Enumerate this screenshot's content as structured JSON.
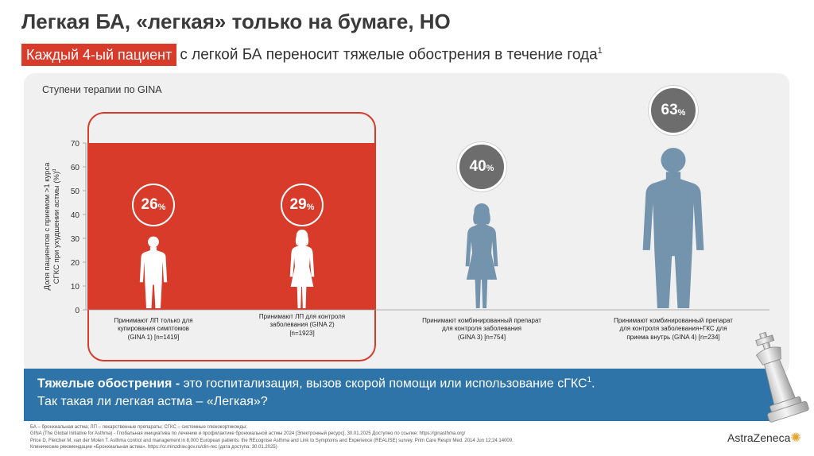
{
  "header": {
    "title": "Легкая БА, «легкая» только на бумаге, НО",
    "subtitle_highlight": "Каждый 4-ый пациент",
    "subtitle_rest": "с легкой БА переносит тяжелые обострения в течение года",
    "subtitle_sup": "1"
  },
  "panel": {
    "title": "Ступени терапии по GINA"
  },
  "chart_data": {
    "type": "bar",
    "ylabel": "Доля пациентов с приемом >1 курса СГКС при ухудшении астмы (%)",
    "ylabel_sup": "d",
    "ylim": [
      0,
      70
    ],
    "yticks": [
      "0",
      "10",
      "20",
      "30",
      "40",
      "50",
      "60",
      "70"
    ],
    "categories": [
      "Принимают ЛП только для купирования симптомов (GINA 1) [n=1419]",
      "Принимают ЛП для контроля заболевания (GINA 2) [n=1923]",
      "Принимают комбинированный препарат для контроля заболевания (GINA 3) [n=754]",
      "Принимают комбинированный препарат для контроля заболевания+ГКС для приема внутрь (GINA 4) [n=234]"
    ],
    "values": [
      26,
      29,
      40,
      63
    ],
    "labels": [
      "26",
      "29",
      "40",
      "63"
    ],
    "unit": "%",
    "highlighted_region": "GINA 1–2",
    "colors": {
      "highlight": "#d93b2b",
      "figure_white": "#ffffff",
      "figure_blue": "#7493ad",
      "bubble_grey": "#6d6d6d"
    }
  },
  "cat_lines": [
    [
      "Принимают ЛП только для",
      "купирования симптомов",
      "(GINA 1) [n=1419]"
    ],
    [
      "Принимают ЛП для контроля",
      "заболевания (GINA 2)",
      "[n=1923]"
    ],
    [
      "Принимают комбинированный препарат",
      "для контроля заболевания",
      "(GINA 3) [n=754]"
    ],
    [
      "Принимают комбинированный препарат",
      "для контроля заболевания+ГКС для",
      "приема внутрь (GINA 4) [n=234]"
    ]
  ],
  "bottom": {
    "line1_bold": "Тяжелые обострения -",
    "line1_rest": " это госпитализация, вызов скорой помощи или использование сГКС",
    "line1_sup": "1",
    "line1_end": ".",
    "line2": "Так такая ли легкая астма –  «Легкая»?"
  },
  "footnotes": [
    "БА – бронхиальная астма; ЛП – лекарственные препараты; СГКС – системные глюкокортикоиды;",
    "GINA (The Global Initiative for Asthma) - Глобальная инициатива по лечению и профилактике бронхиальной астмы 2024 [Электронный ресурс], 30.01.2025 Доступно по ссылке: https://ginasthma.org/",
    "Price D, Fletcher M, van der Molen T. Asthma control and management in 8,000 European patients: the REcognise Asthma and Link to Symptoms and Experience (REALISE) survey. Prim Care Respir Med. 2014 Jun 12;24:14009.",
    "Клинические рекомендации «Бронхиальная астма». https://cr.minzdrav.gov.ru/clin-rec (дата доступа: 30.01.2025)"
  ],
  "logo": {
    "text": "AstraZeneca",
    "icon": "astrazeneca-swirl-icon"
  },
  "decor": {
    "icon": "chess-king-icon"
  }
}
